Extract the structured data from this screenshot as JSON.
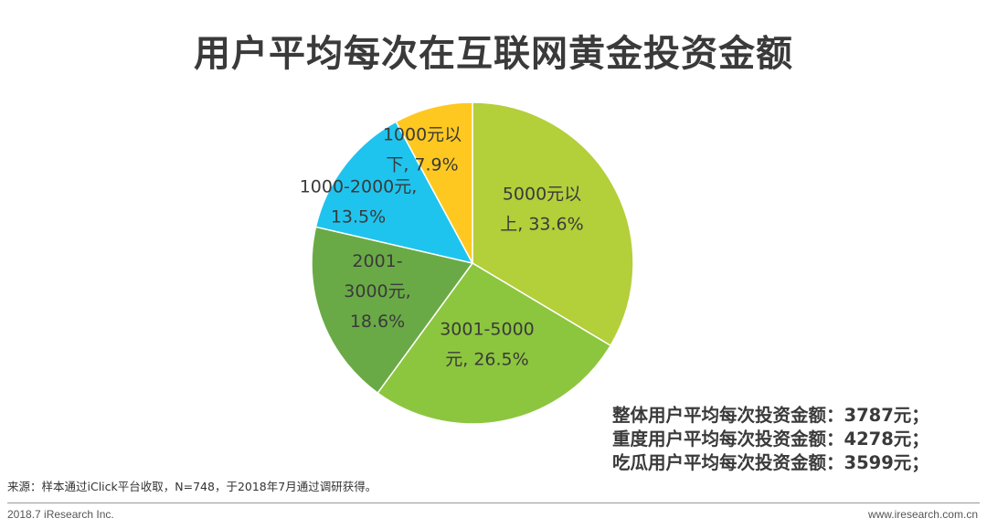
{
  "title": "用户平均每次在互联网黄金投资金额",
  "chart_data": {
    "type": "pie",
    "title": "用户平均每次在互联网黄金投资金额",
    "slices": [
      {
        "label_lines": [
          "5000元以",
          "上, 33.6%"
        ],
        "value": 33.6,
        "color": "#b3cf3a"
      },
      {
        "label_lines": [
          "3001-5000",
          "元, 26.5%"
        ],
        "value": 26.5,
        "color": "#8cc63f"
      },
      {
        "label_lines": [
          "2001-",
          "3000元,",
          "18.6%"
        ],
        "value": 18.6,
        "color": "#6aaa46"
      },
      {
        "label_lines": [
          "1000-2000元,",
          "13.5%"
        ],
        "value": 13.5,
        "color": "#1fc4ee"
      },
      {
        "label_lines": [
          "1000元以",
          "下, 7.9%"
        ],
        "value": 7.9,
        "color": "#ffc820"
      }
    ],
    "start": "12 o'clock",
    "direction": "clockwise",
    "legend": "none"
  },
  "summary": [
    "整体用户平均每次投资金额：3787元；",
    "重度用户平均每次投资金额：4278元；",
    "吃瓜用户平均每次投资金额：3599元；"
  ],
  "footnote": "来源：样本通过iClick平台收取，N=748，于2018年7月通过调研获得。",
  "footer": {
    "left": "2018.7 iResearch Inc.",
    "right": "www.iresearch.com.cn"
  }
}
